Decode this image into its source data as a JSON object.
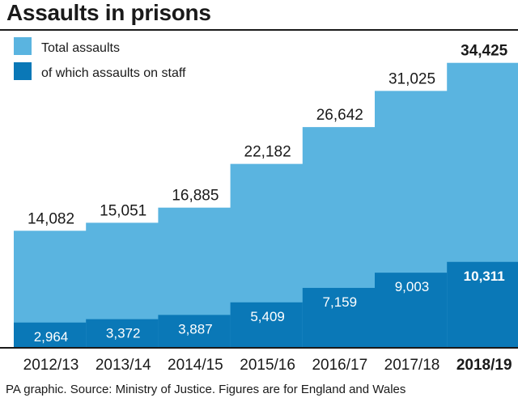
{
  "title": "Assaults in prisons",
  "source": "PA graphic. Source: Ministry of Justice. Figures are for England and Wales",
  "colors": {
    "total": "#5ab4e0",
    "staff": "#0a78b7",
    "axis": "#1a1a1a"
  },
  "chart_data": {
    "type": "bar",
    "title": "Assaults in prisons",
    "categories": [
      "2012/13",
      "2013/14",
      "2014/15",
      "2015/16",
      "2016/17",
      "2017/18",
      "2018/19"
    ],
    "series": [
      {
        "name": "Total assaults",
        "values": [
          14082,
          15051,
          16885,
          22182,
          26642,
          31025,
          34425
        ],
        "labels": [
          "14,082",
          "15,051",
          "16,885",
          "22,182",
          "26,642",
          "31,025",
          "34,425"
        ]
      },
      {
        "name": "of which assaults on staff",
        "values": [
          2964,
          3372,
          3887,
          5409,
          7159,
          9003,
          10311
        ],
        "labels": [
          "2,964",
          "3,372",
          "3,887",
          "5,409",
          "7,159",
          "9,003",
          "10,311"
        ]
      }
    ],
    "highlight_category": "2018/19",
    "legend": "top-left",
    "grid": false
  }
}
